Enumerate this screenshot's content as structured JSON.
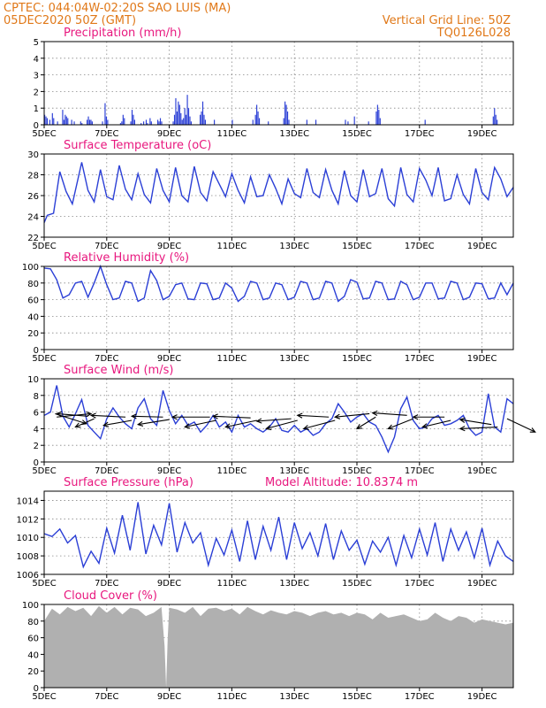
{
  "header": {
    "line1": "CPTEC:   044:04W-02:20S   SAO LUIS (MA)",
    "line2": "05DEC2020 50Z (GMT)",
    "grid_note": "Vertical Grid Line: 50Z",
    "model_code": "TQ0126L028"
  },
  "colors": {
    "header": "#e07818",
    "title": "#e8177e",
    "series": "#2b3fd6",
    "cloud": "#b0b0b0",
    "wind_arrow": "#000000"
  },
  "chart_data": [
    {
      "type": "bar",
      "title": "Precipitation (mm/h)",
      "x_ticks": [
        "5DEC",
        "7DEC",
        "9DEC",
        "11DEC",
        "13DEC",
        "15DEC",
        "17DEC",
        "19DEC"
      ],
      "ylim": [
        0,
        5
      ],
      "y_ticks": [
        0,
        1,
        2,
        3,
        4,
        5
      ],
      "grid": true,
      "values": [
        0.6,
        0.5,
        0.4,
        0,
        0.3,
        0,
        0.7,
        0.4,
        0,
        0,
        0.2,
        0,
        0,
        0,
        0.9,
        0.3,
        0.6,
        0.5,
        0.4,
        0,
        0,
        0.3,
        0,
        0.2,
        0,
        0,
        0,
        0,
        0.2,
        0.1,
        0,
        0,
        0,
        0.3,
        0.5,
        0.3,
        0.3,
        0.2,
        0,
        0,
        0,
        0,
        0,
        0,
        0,
        0.2,
        0,
        1.3,
        0.5,
        0.3,
        0,
        0,
        0,
        0,
        0,
        0,
        0,
        0,
        0,
        0.1,
        0.2,
        0.6,
        0.4,
        0,
        0,
        0,
        0,
        0.2,
        0.9,
        0.6,
        0.3,
        0,
        0,
        0,
        0,
        0.1,
        0,
        0.2,
        0,
        0.3,
        0.1,
        0,
        0.4,
        0.2,
        0,
        0,
        0,
        0,
        0.3,
        0.2,
        0.4,
        0.2,
        0,
        0,
        0,
        0,
        0,
        0,
        0,
        0,
        0.2,
        0.6,
        1.6,
        0.8,
        1.4,
        1.2,
        0.7,
        0.3,
        0.4,
        1.0,
        0.6,
        1.8,
        1.0,
        0.5,
        0.2,
        0,
        0,
        0,
        0,
        0,
        0,
        0.6,
        0.8,
        1.4,
        0.6,
        0.3,
        0,
        0,
        0,
        0,
        0,
        0,
        0.3,
        0,
        0,
        0,
        0,
        0,
        0,
        0,
        0,
        0,
        0,
        0,
        0,
        0,
        0.3,
        0,
        0,
        0,
        0,
        0,
        0,
        0,
        0,
        0,
        0,
        0,
        0,
        0,
        0,
        0,
        0.3,
        0,
        0.6,
        1.2,
        0.8,
        0.4,
        0,
        0,
        0,
        0,
        0,
        0,
        0.2,
        0,
        0,
        0,
        0,
        0,
        0,
        0,
        0,
        0,
        0,
        0,
        0.4,
        1.4,
        1.2,
        0.8,
        0.3,
        0,
        0,
        0,
        0,
        0,
        0,
        0,
        0,
        0,
        0,
        0,
        0,
        0,
        0.3,
        0,
        0,
        0,
        0,
        0,
        0,
        0.3,
        0,
        0,
        0,
        0,
        0,
        0,
        0,
        0,
        0,
        0,
        0,
        0,
        0,
        0,
        0,
        0,
        0,
        0,
        0,
        0,
        0,
        0,
        0.3,
        0,
        0.2,
        0,
        0,
        0,
        0,
        0.5,
        0,
        0,
        0,
        0,
        0,
        0,
        0,
        0,
        0,
        0,
        0.2,
        0,
        0,
        0,
        0,
        0,
        0.8,
        1.2,
        0.9,
        0.4,
        0,
        0,
        0,
        0,
        0,
        0,
        0,
        0,
        0,
        0,
        0,
        0,
        0,
        0,
        0,
        0,
        0,
        0,
        0,
        0,
        0,
        0,
        0,
        0,
        0,
        0,
        0,
        0,
        0,
        0,
        0,
        0,
        0,
        0,
        0.3,
        0,
        0,
        0,
        0,
        0,
        0,
        0,
        0,
        0,
        0,
        0,
        0,
        0,
        0,
        0,
        0,
        0,
        0,
        0,
        0,
        0,
        0,
        0,
        0,
        0,
        0,
        0,
        0,
        0,
        0,
        0,
        0,
        0,
        0,
        0,
        0,
        0,
        0,
        0,
        0,
        0,
        0,
        0,
        0,
        0,
        0,
        0,
        0,
        0,
        0,
        0,
        0,
        0.5,
        1.0,
        0.6,
        0.3,
        0,
        0,
        0,
        0,
        0,
        0,
        0,
        0,
        0,
        0,
        0,
        0
      ]
    },
    {
      "type": "line",
      "title": "Surface Temperature (oC)",
      "x_ticks": [
        "5DEC",
        "7DEC",
        "9DEC",
        "11DEC",
        "13DEC",
        "15DEC",
        "17DEC",
        "19DEC"
      ],
      "ylim": [
        22,
        30
      ],
      "y_ticks": [
        22,
        24,
        26,
        28,
        30
      ],
      "grid": true,
      "x_days": [
        0,
        0.1,
        0.3,
        0.5,
        0.7,
        0.9,
        1.2,
        1.4,
        1.6,
        1.8,
        2.0,
        2.2,
        2.4,
        2.6,
        2.8,
        3.0,
        3.2,
        3.4,
        3.6,
        3.8,
        4.0,
        4.2,
        4.4,
        4.6,
        4.8,
        5.0,
        5.2,
        5.4,
        5.6,
        5.8,
        6.0,
        6.2,
        6.4,
        6.6,
        6.8,
        7.0,
        7.2,
        7.4,
        7.6,
        7.8,
        8.0,
        8.2,
        8.4,
        8.6,
        8.8,
        9.0,
        9.2,
        9.4,
        9.6,
        9.8,
        10.0,
        10.2,
        10.4,
        10.6,
        10.8,
        11.0,
        11.2,
        11.4,
        11.6,
        11.8,
        12.0,
        12.2,
        12.4,
        12.6,
        12.8,
        13.0,
        13.2,
        13.4,
        13.6,
        13.8,
        14.0,
        14.2,
        14.4,
        14.6,
        14.8,
        15.0
      ],
      "values": [
        23.4,
        24.1,
        24.3,
        28.3,
        26.4,
        25.2,
        29.2,
        26.5,
        25.4,
        28.5,
        25.9,
        25.6,
        28.9,
        26.6,
        25.6,
        28.1,
        26.1,
        25.3,
        28.6,
        26.5,
        25.4,
        28.7,
        26.0,
        25.4,
        28.8,
        26.3,
        25.5,
        28.3,
        27.1,
        25.9,
        28.1,
        26.5,
        25.3,
        27.8,
        25.9,
        26.0,
        28.0,
        26.7,
        25.2,
        27.6,
        26.2,
        25.8,
        28.6,
        26.3,
        25.8,
        28.5,
        26.5,
        25.2,
        28.4,
        26.0,
        25.4,
        28.5,
        25.9,
        26.2,
        28.6,
        25.7,
        25.0,
        28.7,
        26.1,
        25.4,
        28.6,
        27.5,
        26.0,
        28.7,
        25.5,
        25.7,
        28.0,
        26.1,
        25.2,
        28.6,
        26.3,
        25.6,
        28.7,
        27.6,
        25.9,
        26.8
      ]
    },
    {
      "type": "line",
      "title": "Relative Humidity (%)",
      "x_ticks": [
        "5DEC",
        "7DEC",
        "9DEC",
        "11DEC",
        "13DEC",
        "15DEC",
        "17DEC",
        "19DEC"
      ],
      "ylim": [
        0,
        100
      ],
      "y_ticks": [
        0,
        20,
        40,
        60,
        80,
        100
      ],
      "grid": true,
      "x_days": [
        0,
        0.2,
        0.4,
        0.6,
        0.8,
        1.0,
        1.2,
        1.4,
        1.6,
        1.8,
        2.0,
        2.2,
        2.4,
        2.6,
        2.8,
        3.0,
        3.2,
        3.4,
        3.6,
        3.8,
        4.0,
        4.2,
        4.4,
        4.6,
        4.8,
        5.0,
        5.2,
        5.4,
        5.6,
        5.8,
        6.0,
        6.2,
        6.4,
        6.6,
        6.8,
        7.0,
        7.2,
        7.4,
        7.6,
        7.8,
        8.0,
        8.2,
        8.4,
        8.6,
        8.8,
        9.0,
        9.2,
        9.4,
        9.6,
        9.8,
        10.0,
        10.2,
        10.4,
        10.6,
        10.8,
        11.0,
        11.2,
        11.4,
        11.6,
        11.8,
        12.0,
        12.2,
        12.4,
        12.6,
        12.8,
        13.0,
        13.2,
        13.4,
        13.6,
        13.8,
        14.0,
        14.2,
        14.4,
        14.6,
        14.8,
        15.0
      ],
      "values": [
        98,
        97,
        84,
        62,
        66,
        80,
        82,
        63,
        80,
        100,
        78,
        60,
        62,
        82,
        80,
        58,
        62,
        95,
        83,
        60,
        64,
        78,
        80,
        61,
        60,
        80,
        79,
        60,
        62,
        80,
        74,
        58,
        64,
        82,
        80,
        60,
        62,
        80,
        78,
        60,
        63,
        82,
        80,
        60,
        62,
        82,
        80,
        58,
        64,
        84,
        81,
        61,
        62,
        82,
        80,
        60,
        61,
        82,
        78,
        60,
        63,
        80,
        80,
        61,
        62,
        82,
        80,
        60,
        63,
        80,
        79,
        61,
        62,
        80,
        66,
        80
      ]
    },
    {
      "type": "line",
      "title": "Surface Wind (m/s)",
      "x_ticks": [
        "5DEC",
        "7DEC",
        "9DEC",
        "11DEC",
        "13DEC",
        "15DEC",
        "17DEC",
        "19DEC"
      ],
      "ylim": [
        0,
        10
      ],
      "y_ticks": [
        0,
        2,
        4,
        6,
        8,
        10
      ],
      "grid": true,
      "x_days": [
        0,
        0.2,
        0.4,
        0.6,
        0.8,
        1.0,
        1.2,
        1.4,
        1.6,
        1.8,
        2.0,
        2.2,
        2.4,
        2.6,
        2.8,
        3.0,
        3.2,
        3.4,
        3.6,
        3.8,
        4.0,
        4.2,
        4.4,
        4.6,
        4.8,
        5.0,
        5.2,
        5.4,
        5.6,
        5.8,
        6.0,
        6.2,
        6.4,
        6.6,
        6.8,
        7.0,
        7.2,
        7.4,
        7.6,
        7.8,
        8.0,
        8.2,
        8.4,
        8.6,
        8.8,
        9.0,
        9.2,
        9.4,
        9.6,
        9.8,
        10.0,
        10.2,
        10.4,
        10.6,
        10.8,
        11.0,
        11.2,
        11.4,
        11.6,
        11.8,
        12.0,
        12.2,
        12.4,
        12.6,
        12.8,
        13.0,
        13.2,
        13.4,
        13.6,
        13.8,
        14.0,
        14.2,
        14.4,
        14.6,
        14.8,
        15.0
      ],
      "values": [
        5.6,
        6.0,
        9.2,
        5.5,
        4.2,
        5.8,
        7.5,
        4.4,
        3.6,
        2.8,
        5.2,
        6.5,
        5.4,
        4.6,
        4.0,
        6.5,
        7.6,
        5.2,
        4.4,
        8.6,
        6.2,
        4.6,
        5.6,
        4.4,
        4.8,
        3.6,
        4.4,
        5.6,
        4.2,
        4.8,
        3.6,
        5.6,
        4.2,
        4.6,
        4.0,
        3.6,
        4.2,
        5.2,
        3.8,
        3.6,
        4.4,
        3.6,
        4.0,
        3.2,
        3.6,
        4.6,
        5.2,
        7.0,
        6.0,
        4.8,
        5.4,
        5.8,
        4.8,
        4.4,
        3.0,
        1.2,
        3.0,
        6.4,
        7.8,
        5.0,
        4.0,
        4.2,
        5.2,
        5.6,
        4.4,
        4.6,
        5.0,
        5.6,
        4.0,
        3.2,
        3.6,
        8.2,
        4.2,
        3.6,
        7.6,
        7.0
      ],
      "arrows": [
        {
          "x": 0.35,
          "y": 5.8,
          "dx": 1.0,
          "dy": -1.2
        },
        {
          "x": 0.4,
          "y": 5.4,
          "dx": 1.1,
          "dy": 0.4
        },
        {
          "x": 1.4,
          "y": 5.5,
          "dx": -1.0,
          "dy": 0.3
        },
        {
          "x": 1.6,
          "y": 5.2,
          "dx": -0.6,
          "dy": -1.0
        },
        {
          "x": 2.6,
          "y": 5.4,
          "dx": -1.1,
          "dy": 0.2
        },
        {
          "x": 2.8,
          "y": 5.0,
          "dx": -0.9,
          "dy": -0.6
        },
        {
          "x": 3.8,
          "y": 5.4,
          "dx": -1.0,
          "dy": 0.1
        },
        {
          "x": 4.0,
          "y": 5.1,
          "dx": -1.0,
          "dy": -0.6
        },
        {
          "x": 5.3,
          "y": 5.4,
          "dx": -1.2,
          "dy": 0.0
        },
        {
          "x": 5.5,
          "y": 5.0,
          "dx": -1.0,
          "dy": -0.8
        },
        {
          "x": 6.6,
          "y": 5.3,
          "dx": -1.2,
          "dy": 0.2
        },
        {
          "x": 6.8,
          "y": 5.0,
          "dx": -1.0,
          "dy": -0.8
        },
        {
          "x": 7.9,
          "y": 5.2,
          "dx": -1.1,
          "dy": -0.3
        },
        {
          "x": 8.1,
          "y": 5.0,
          "dx": -1.0,
          "dy": -1.0
        },
        {
          "x": 9.1,
          "y": 5.4,
          "dx": -1.0,
          "dy": 0.2
        },
        {
          "x": 9.3,
          "y": 5.0,
          "dx": -1.0,
          "dy": -1.0
        },
        {
          "x": 10.4,
          "y": 5.8,
          "dx": -1.1,
          "dy": -0.4
        },
        {
          "x": 10.6,
          "y": 5.4,
          "dx": -0.6,
          "dy": -1.4
        },
        {
          "x": 11.6,
          "y": 5.6,
          "dx": -1.1,
          "dy": 0.3
        },
        {
          "x": 11.8,
          "y": 5.2,
          "dx": -0.8,
          "dy": -1.2
        },
        {
          "x": 12.8,
          "y": 5.4,
          "dx": -1.0,
          "dy": 0.0
        },
        {
          "x": 13.0,
          "y": 5.0,
          "dx": -0.9,
          "dy": -0.8
        },
        {
          "x": 14.3,
          "y": 4.5,
          "dx": -1.0,
          "dy": 0.6
        },
        {
          "x": 14.5,
          "y": 4.2,
          "dx": -1.2,
          "dy": -0.2
        },
        {
          "x": 14.8,
          "y": 5.2,
          "dx": 0.9,
          "dy": -1.6
        }
      ]
    },
    {
      "type": "line",
      "title": "Surface Pressure (hPa)",
      "annotation": "Model Altitude: 10.8374 m",
      "x_ticks": [
        "5DEC",
        "7DEC",
        "9DEC",
        "11DEC",
        "13DEC",
        "15DEC",
        "17DEC",
        "19DEC"
      ],
      "ylim": [
        1006,
        1015
      ],
      "y_ticks": [
        1006,
        1008,
        1010,
        1012,
        1014
      ],
      "grid": true,
      "x_days": [
        0,
        0.25,
        0.5,
        0.75,
        1.0,
        1.25,
        1.5,
        1.75,
        2.0,
        2.25,
        2.5,
        2.75,
        3.0,
        3.25,
        3.5,
        3.75,
        4.0,
        4.25,
        4.5,
        4.75,
        5.0,
        5.25,
        5.5,
        5.75,
        6.0,
        6.25,
        6.5,
        6.75,
        7.0,
        7.25,
        7.5,
        7.75,
        8.0,
        8.25,
        8.5,
        8.75,
        9.0,
        9.25,
        9.5,
        9.75,
        10.0,
        10.25,
        10.5,
        10.75,
        11.0,
        11.25,
        11.5,
        11.75,
        12.0,
        12.25,
        12.5,
        12.75,
        13.0,
        13.25,
        13.5,
        13.75,
        14.0,
        14.25,
        14.5,
        14.75,
        15.0
      ],
      "values": [
        1010.4,
        1010.1,
        1010.9,
        1009.4,
        1010.2,
        1006.8,
        1008.5,
        1007.2,
        1011.0,
        1008.3,
        1012.4,
        1008.6,
        1013.8,
        1008.2,
        1011.3,
        1009.2,
        1013.7,
        1008.4,
        1011.6,
        1009.4,
        1010.5,
        1007.0,
        1009.9,
        1008.1,
        1010.8,
        1007.4,
        1011.8,
        1007.6,
        1011.2,
        1008.6,
        1012.2,
        1007.6,
        1011.6,
        1008.8,
        1010.5,
        1008.0,
        1011.5,
        1007.6,
        1010.7,
        1008.6,
        1009.7,
        1007.1,
        1009.6,
        1008.4,
        1010.0,
        1007.0,
        1010.2,
        1007.8,
        1010.9,
        1008.1,
        1011.6,
        1007.4,
        1010.9,
        1008.6,
        1010.6,
        1007.8,
        1011.0,
        1007.0,
        1009.6,
        1008.0,
        1007.4
      ]
    },
    {
      "type": "area",
      "title": "Cloud Cover (%)",
      "x_ticks": [
        "5DEC",
        "7DEC",
        "9DEC",
        "11DEC",
        "13DEC",
        "15DEC",
        "17DEC",
        "19DEC"
      ],
      "ylim": [
        0,
        100
      ],
      "y_ticks": [
        0,
        20,
        40,
        60,
        80,
        100
      ],
      "grid": true,
      "x_days": [
        0,
        0.25,
        0.5,
        0.75,
        1.0,
        1.25,
        1.5,
        1.75,
        2.0,
        2.25,
        2.5,
        2.75,
        3.0,
        3.25,
        3.5,
        3.75,
        3.85,
        3.9,
        3.95,
        4.0,
        4.25,
        4.5,
        4.75,
        5.0,
        5.25,
        5.5,
        5.75,
        6.0,
        6.25,
        6.5,
        6.75,
        7.0,
        7.25,
        7.5,
        7.75,
        8.0,
        8.25,
        8.5,
        8.75,
        9.0,
        9.25,
        9.5,
        9.75,
        10.0,
        10.25,
        10.5,
        10.75,
        11.0,
        11.25,
        11.5,
        11.75,
        12.0,
        12.25,
        12.5,
        12.75,
        13.0,
        13.25,
        13.5,
        13.75,
        14.0,
        14.25,
        14.5,
        14.75,
        15.0
      ],
      "values": [
        80,
        95,
        88,
        97,
        92,
        96,
        86,
        98,
        90,
        97,
        88,
        96,
        94,
        86,
        90,
        97,
        50,
        0,
        60,
        96,
        94,
        90,
        97,
        86,
        95,
        96,
        92,
        95,
        88,
        97,
        92,
        88,
        93,
        90,
        88,
        92,
        90,
        86,
        90,
        92,
        88,
        90,
        86,
        90,
        88,
        82,
        90,
        84,
        86,
        88,
        84,
        80,
        82,
        90,
        84,
        80,
        86,
        84,
        78,
        82,
        80,
        78,
        76,
        78
      ]
    }
  ]
}
